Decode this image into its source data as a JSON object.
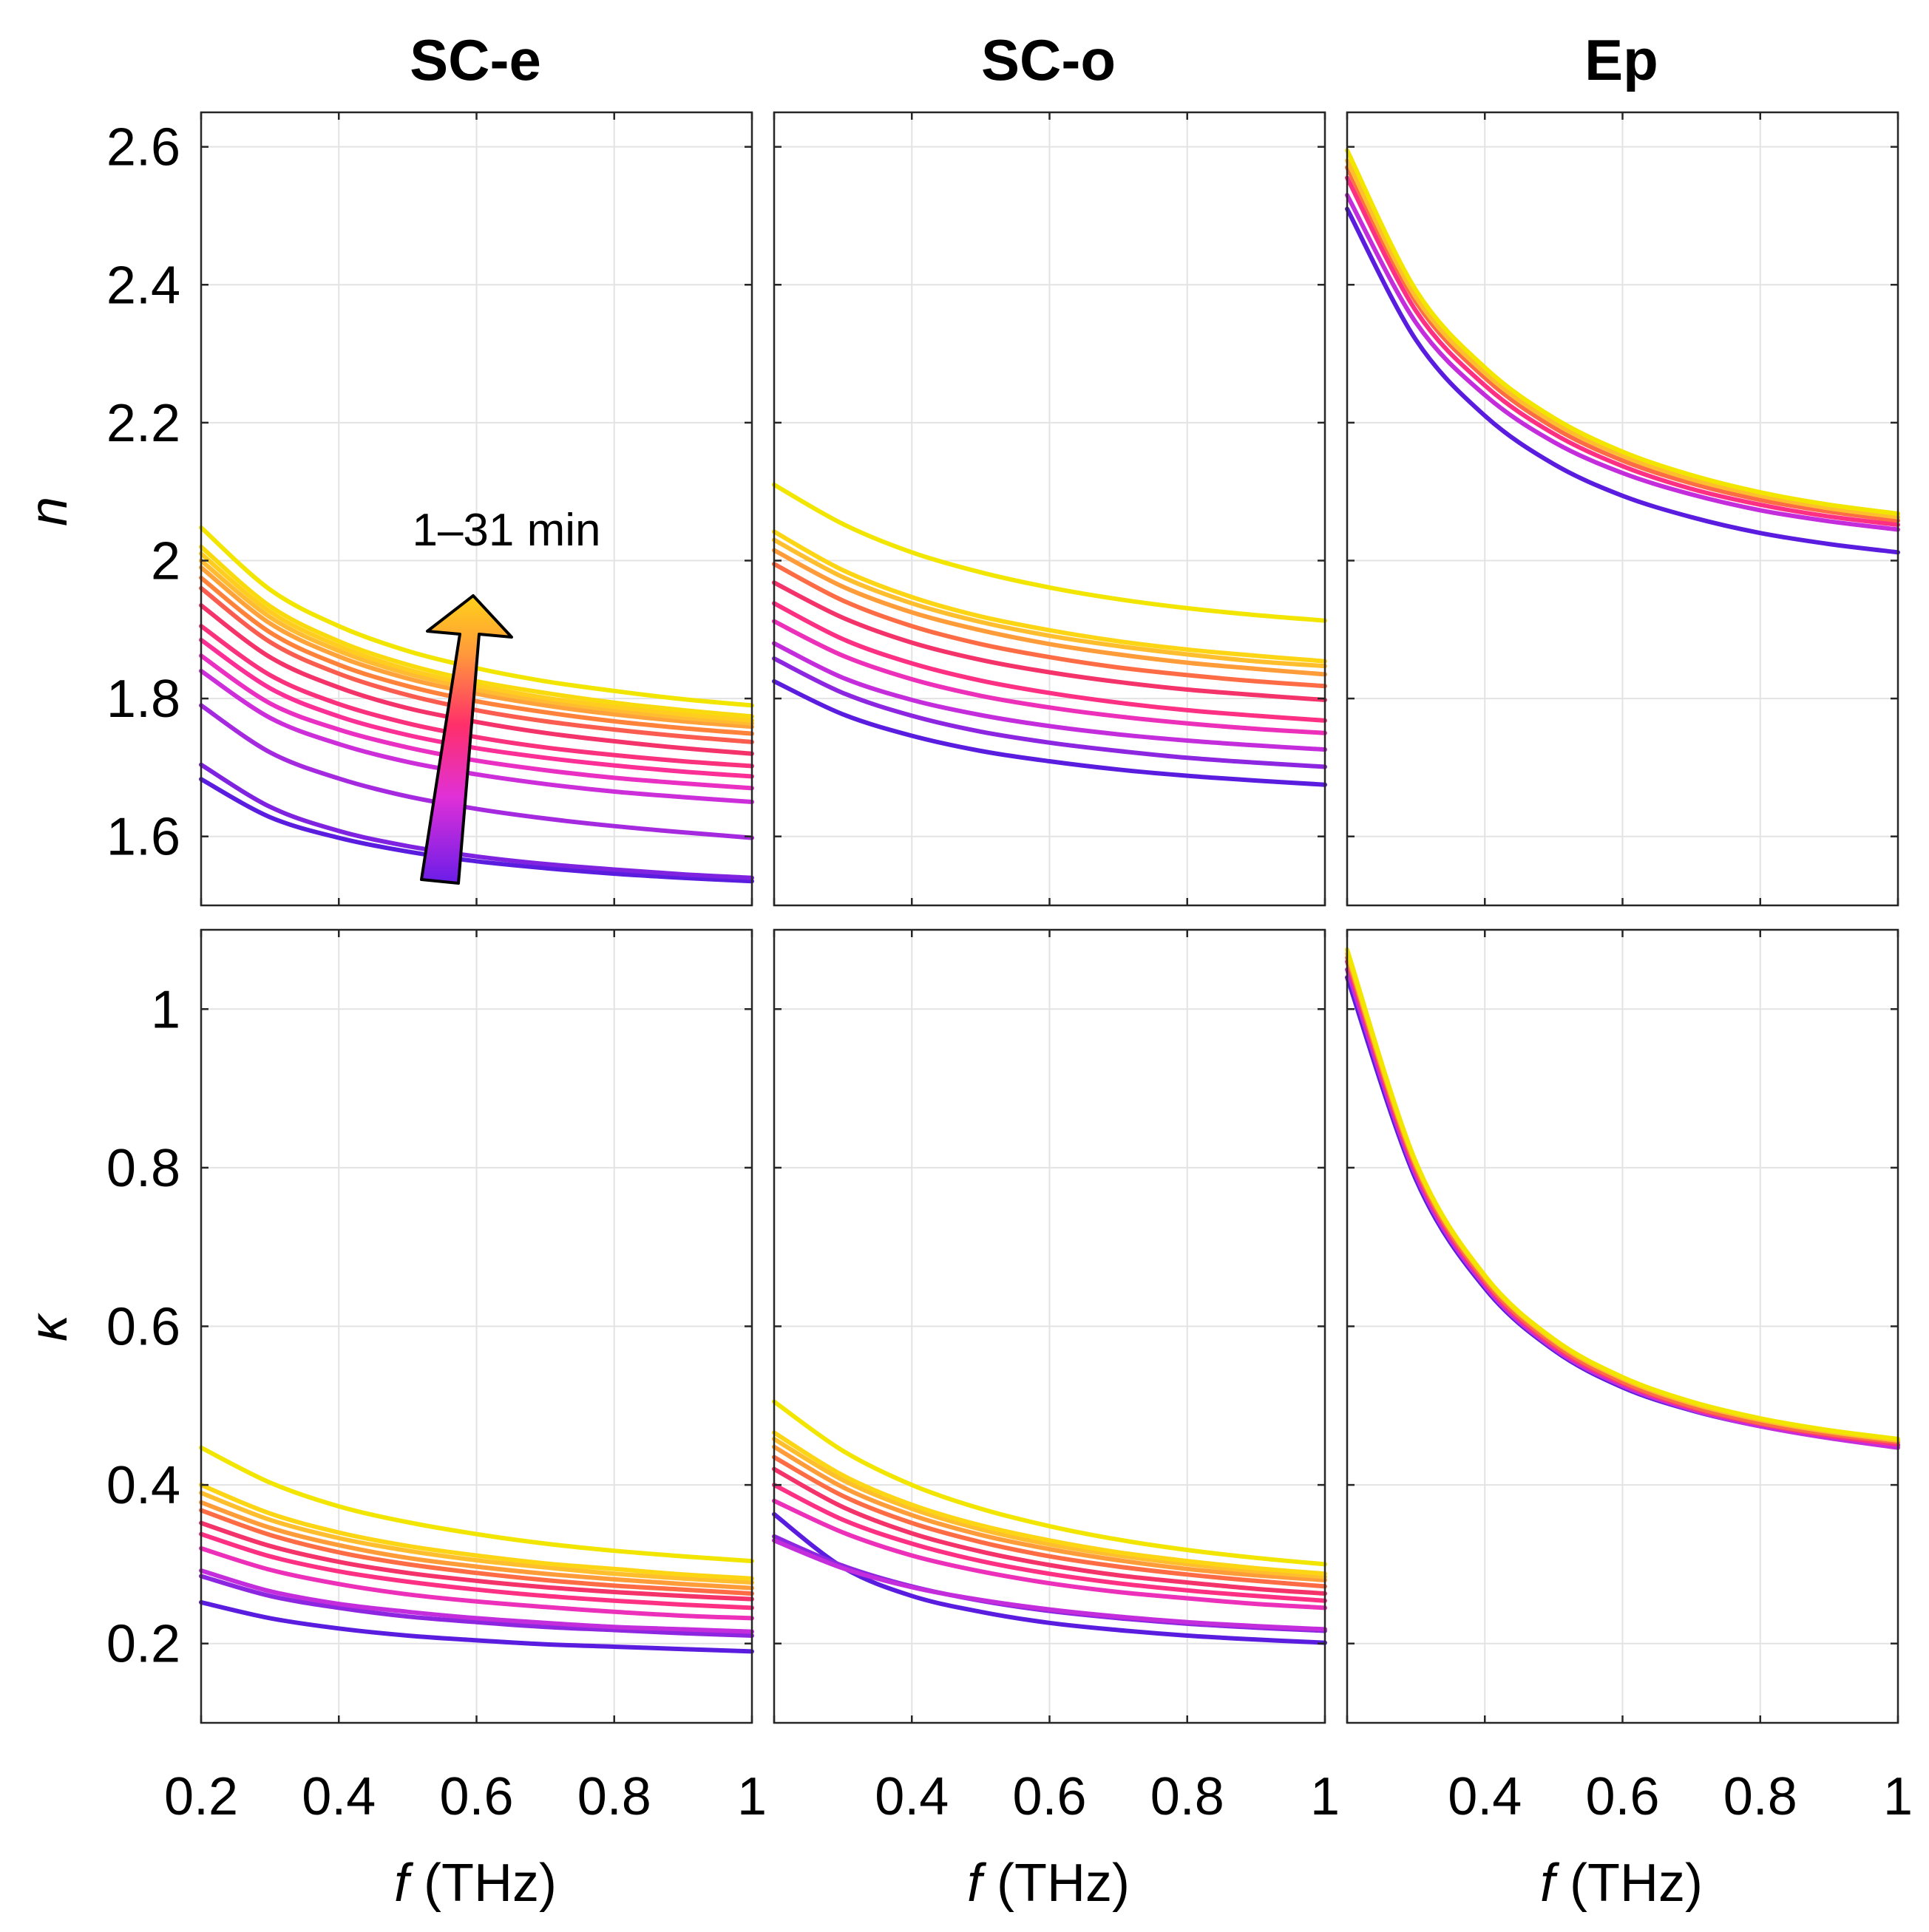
{
  "chart_data": {
    "type": "line",
    "column_titles": [
      "SC-e",
      "SC-o",
      "Ep"
    ],
    "row_labels": [
      "n",
      "κ"
    ],
    "xlabel_symbol": "f",
    "xlabel_unit": "(THz)",
    "xlim": [
      0.2,
      1
    ],
    "x_ticks": [
      0.2,
      0.4,
      0.6,
      0.8,
      1
    ],
    "x_tick_labels": [
      "0.2",
      "0.4",
      "0.6",
      "0.8",
      "1"
    ],
    "rows": [
      {
        "ylabel": "n",
        "ylim": [
          1.5,
          2.65
        ],
        "y_ticks": [
          1.6,
          1.8,
          2.0,
          2.2,
          2.4,
          2.6
        ],
        "y_tick_labels": [
          "1.6",
          "1.8",
          "2",
          "2.2",
          "2.4",
          "2.6"
        ]
      },
      {
        "ylabel": "κ",
        "ylim": [
          0.1,
          1.1
        ],
        "y_ticks": [
          0.2,
          0.4,
          0.6,
          0.8,
          1.0
        ],
        "y_tick_labels": [
          "0.2",
          "0.4",
          "0.6",
          "0.8",
          "1"
        ]
      }
    ],
    "grid": true,
    "annotation": {
      "text": "1–31 min",
      "arrow": "gradient arrow pointing up, purple to yellow"
    },
    "colormap": [
      "#5a1de0",
      "#9a28e0",
      "#e030d8",
      "#ff2f8a",
      "#f4336a",
      "#ff7a3a",
      "#ffb23a",
      "#ffd11a",
      "#f2e600"
    ],
    "panels": [
      {
        "row": 0,
        "col": 0,
        "x": [
          0.2,
          0.3,
          0.4,
          0.5,
          0.6,
          0.7,
          0.8,
          0.9,
          1.0
        ],
        "series": [
          {
            "values": [
              1.683,
              1.628,
              1.598,
              1.578,
              1.564,
              1.554,
              1.546,
              1.54,
              1.535
            ]
          },
          {
            "values": [
              1.704,
              1.643,
              1.608,
              1.586,
              1.571,
              1.56,
              1.552,
              1.545,
              1.54
            ]
          },
          {
            "values": [
              1.79,
              1.722,
              1.684,
              1.658,
              1.64,
              1.626,
              1.615,
              1.606,
              1.598
            ]
          },
          {
            "values": [
              1.84,
              1.772,
              1.734,
              1.708,
              1.69,
              1.676,
              1.665,
              1.657,
              1.65
            ]
          },
          {
            "values": [
              1.862,
              1.793,
              1.755,
              1.729,
              1.71,
              1.696,
              1.685,
              1.677,
              1.67
            ]
          },
          {
            "values": [
              1.885,
              1.815,
              1.774,
              1.747,
              1.728,
              1.714,
              1.703,
              1.694,
              1.687
            ]
          },
          {
            "values": [
              1.905,
              1.834,
              1.792,
              1.764,
              1.744,
              1.729,
              1.718,
              1.709,
              1.702
            ]
          },
          {
            "values": [
              1.935,
              1.86,
              1.816,
              1.786,
              1.766,
              1.75,
              1.738,
              1.728,
              1.72
            ]
          },
          {
            "values": [
              1.96,
              1.882,
              1.836,
              1.805,
              1.783,
              1.767,
              1.755,
              1.745,
              1.737
            ]
          },
          {
            "values": [
              1.975,
              1.896,
              1.849,
              1.818,
              1.796,
              1.78,
              1.767,
              1.757,
              1.749
            ]
          },
          {
            "values": [
              1.99,
              1.909,
              1.861,
              1.829,
              1.807,
              1.79,
              1.777,
              1.767,
              1.759
            ]
          },
          {
            "values": [
              2.0,
              1.918,
              1.869,
              1.836,
              1.813,
              1.796,
              1.783,
              1.772,
              1.764
            ]
          },
          {
            "values": [
              2.01,
              1.926,
              1.876,
              1.842,
              1.819,
              1.801,
              1.788,
              1.777,
              1.768
            ]
          },
          {
            "values": [
              2.02,
              1.934,
              1.883,
              1.849,
              1.825,
              1.808,
              1.794,
              1.783,
              1.774
            ]
          },
          {
            "values": [
              2.048,
              1.958,
              1.905,
              1.869,
              1.844,
              1.825,
              1.811,
              1.799,
              1.79
            ]
          }
        ]
      },
      {
        "row": 0,
        "col": 1,
        "x": [
          0.2,
          0.3,
          0.4,
          0.5,
          0.6,
          0.7,
          0.8,
          0.9,
          1.0
        ],
        "series": [
          {
            "values": [
              1.825,
              1.777,
              1.746,
              1.724,
              1.709,
              1.697,
              1.688,
              1.681,
              1.675
            ]
          },
          {
            "values": [
              1.858,
              1.808,
              1.775,
              1.752,
              1.736,
              1.724,
              1.714,
              1.707,
              1.701
            ]
          },
          {
            "values": [
              1.88,
              1.83,
              1.798,
              1.776,
              1.76,
              1.748,
              1.739,
              1.732,
              1.726
            ]
          },
          {
            "values": [
              1.912,
              1.862,
              1.828,
              1.804,
              1.787,
              1.774,
              1.764,
              1.756,
              1.75
            ]
          },
          {
            "values": [
              1.938,
              1.886,
              1.851,
              1.826,
              1.808,
              1.794,
              1.783,
              1.775,
              1.768
            ]
          },
          {
            "values": [
              1.968,
              1.917,
              1.881,
              1.856,
              1.838,
              1.824,
              1.813,
              1.805,
              1.798
            ]
          },
          {
            "values": [
              1.995,
              1.942,
              1.905,
              1.879,
              1.86,
              1.845,
              1.834,
              1.825,
              1.818
            ]
          },
          {
            "values": [
              2.015,
              1.962,
              1.925,
              1.899,
              1.879,
              1.864,
              1.852,
              1.843,
              1.835
            ]
          },
          {
            "values": [
              2.03,
              1.976,
              1.938,
              1.911,
              1.891,
              1.876,
              1.864,
              1.854,
              1.847
            ]
          },
          {
            "values": [
              2.042,
              1.986,
              1.947,
              1.919,
              1.899,
              1.883,
              1.871,
              1.862,
              1.854
            ]
          },
          {
            "values": [
              2.11,
              2.053,
              2.012,
              1.983,
              1.961,
              1.944,
              1.931,
              1.921,
              1.913
            ]
          }
        ]
      },
      {
        "row": 0,
        "col": 2,
        "x": [
          0.2,
          0.3,
          0.4,
          0.5,
          0.6,
          0.7,
          0.8,
          0.9,
          1.0
        ],
        "series": [
          {
            "values": [
              2.51,
              2.32,
              2.21,
              2.14,
              2.094,
              2.063,
              2.04,
              2.024,
              2.012
            ]
          },
          {
            "values": [
              2.53,
              2.345,
              2.24,
              2.172,
              2.127,
              2.096,
              2.073,
              2.057,
              2.045
            ]
          },
          {
            "values": [
              2.555,
              2.362,
              2.254,
              2.184,
              2.137,
              2.104,
              2.081,
              2.064,
              2.052
            ]
          },
          {
            "values": [
              2.57,
              2.375,
              2.265,
              2.193,
              2.145,
              2.112,
              2.088,
              2.071,
              2.058
            ]
          },
          {
            "values": [
              2.58,
              2.382,
              2.272,
              2.2,
              2.152,
              2.118,
              2.094,
              2.076,
              2.063
            ]
          },
          {
            "values": [
              2.595,
              2.392,
              2.28,
              2.207,
              2.158,
              2.124,
              2.099,
              2.081,
              2.068
            ]
          }
        ]
      },
      {
        "row": 1,
        "col": 0,
        "x": [
          0.2,
          0.3,
          0.4,
          0.5,
          0.6,
          0.7,
          0.8,
          0.9,
          1.0
        ],
        "series": [
          {
            "values": [
              0.252,
              0.232,
              0.219,
              0.21,
              0.204,
              0.199,
              0.196,
              0.193,
              0.19
            ]
          },
          {
            "values": [
              0.285,
              0.26,
              0.245,
              0.234,
              0.227,
              0.221,
              0.217,
              0.213,
              0.21
            ]
          },
          {
            "values": [
              0.292,
              0.266,
              0.25,
              0.24,
              0.232,
              0.226,
              0.221,
              0.218,
              0.215
            ]
          },
          {
            "values": [
              0.32,
              0.293,
              0.275,
              0.262,
              0.253,
              0.246,
              0.24,
              0.235,
              0.232
            ]
          },
          {
            "values": [
              0.338,
              0.31,
              0.291,
              0.278,
              0.268,
              0.26,
              0.254,
              0.249,
              0.245
            ]
          },
          {
            "values": [
              0.352,
              0.323,
              0.303,
              0.289,
              0.279,
              0.271,
              0.265,
              0.26,
              0.256
            ]
          },
          {
            "values": [
              0.368,
              0.337,
              0.315,
              0.3,
              0.289,
              0.28,
              0.273,
              0.268,
              0.263
            ]
          },
          {
            "values": [
              0.378,
              0.346,
              0.324,
              0.308,
              0.297,
              0.288,
              0.281,
              0.275,
              0.27
            ]
          },
          {
            "values": [
              0.39,
              0.356,
              0.333,
              0.317,
              0.305,
              0.296,
              0.288,
              0.282,
              0.277
            ]
          },
          {
            "values": [
              0.4,
              0.364,
              0.34,
              0.323,
              0.311,
              0.301,
              0.294,
              0.287,
              0.282
            ]
          },
          {
            "values": [
              0.447,
              0.403,
              0.373,
              0.353,
              0.338,
              0.326,
              0.317,
              0.31,
              0.304
            ]
          }
        ]
      },
      {
        "row": 1,
        "col": 1,
        "x": [
          0.2,
          0.3,
          0.4,
          0.5,
          0.6,
          0.7,
          0.8,
          0.9,
          1.0
        ],
        "series": [
          {
            "values": [
              0.363,
              0.296,
              0.26,
              0.24,
              0.226,
              0.217,
              0.21,
              0.205,
              0.201
            ]
          },
          {
            "values": [
              0.335,
              0.298,
              0.272,
              0.254,
              0.241,
              0.232,
              0.225,
              0.22,
              0.216
            ]
          },
          {
            "values": [
              0.33,
              0.295,
              0.271,
              0.255,
              0.243,
              0.234,
              0.227,
              0.222,
              0.218
            ]
          },
          {
            "values": [
              0.38,
              0.34,
              0.311,
              0.291,
              0.276,
              0.265,
              0.257,
              0.25,
              0.245
            ]
          },
          {
            "values": [
              0.4,
              0.356,
              0.326,
              0.304,
              0.288,
              0.276,
              0.267,
              0.26,
              0.254
            ]
          },
          {
            "values": [
              0.42,
              0.372,
              0.339,
              0.316,
              0.299,
              0.286,
              0.277,
              0.269,
              0.263
            ]
          },
          {
            "values": [
              0.435,
              0.386,
              0.352,
              0.328,
              0.31,
              0.297,
              0.287,
              0.279,
              0.272
            ]
          },
          {
            "values": [
              0.448,
              0.397,
              0.362,
              0.337,
              0.319,
              0.305,
              0.294,
              0.286,
              0.28
            ]
          },
          {
            "values": [
              0.458,
              0.406,
              0.37,
              0.344,
              0.325,
              0.311,
              0.3,
              0.291,
              0.284
            ]
          },
          {
            "values": [
              0.466,
              0.412,
              0.375,
              0.349,
              0.33,
              0.315,
              0.304,
              0.295,
              0.288
            ]
          },
          {
            "values": [
              0.505,
              0.443,
              0.4,
              0.37,
              0.348,
              0.331,
              0.318,
              0.308,
              0.3
            ]
          }
        ]
      },
      {
        "row": 1,
        "col": 2,
        "x": [
          0.2,
          0.3,
          0.4,
          0.5,
          0.6,
          0.7,
          0.8,
          0.9,
          1.0
        ],
        "series": [
          {
            "values": [
              1.04,
              0.785,
              0.648,
              0.57,
              0.523,
              0.494,
              0.474,
              0.46,
              0.45
            ]
          },
          {
            "values": [
              1.05,
              0.79,
              0.651,
              0.572,
              0.525,
              0.495,
              0.474,
              0.459,
              0.447
            ]
          },
          {
            "values": [
              1.06,
              0.796,
              0.655,
              0.575,
              0.528,
              0.497,
              0.477,
              0.462,
              0.451
            ]
          },
          {
            "values": [
              1.065,
              0.8,
              0.658,
              0.578,
              0.53,
              0.499,
              0.478,
              0.464,
              0.454
            ]
          },
          {
            "values": [
              1.07,
              0.804,
              0.662,
              0.582,
              0.534,
              0.503,
              0.482,
              0.467,
              0.456
            ]
          },
          {
            "values": [
              1.075,
              0.807,
              0.664,
              0.584,
              0.536,
              0.505,
              0.484,
              0.469,
              0.458
            ]
          }
        ]
      }
    ]
  }
}
